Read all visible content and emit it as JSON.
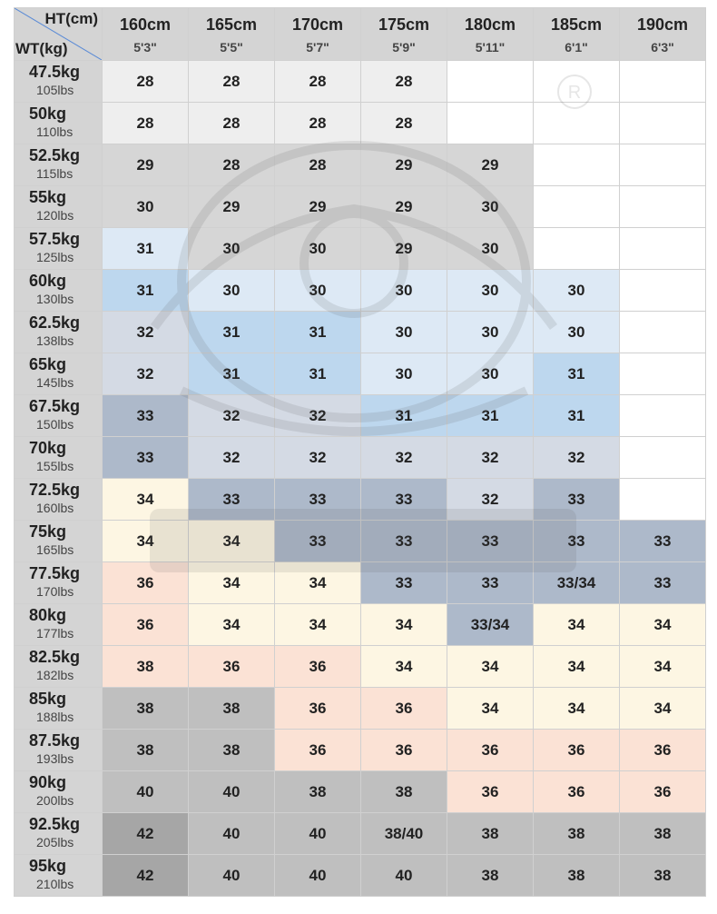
{
  "corner": {
    "ht_label": "HT(cm)",
    "wt_label": "WT(kg)"
  },
  "columns": [
    {
      "cm": "160cm",
      "inch": "5'3\""
    },
    {
      "cm": "165cm",
      "inch": "5'5\""
    },
    {
      "cm": "170cm",
      "inch": "5'7\""
    },
    {
      "cm": "175cm",
      "inch": "5'9\""
    },
    {
      "cm": "180cm",
      "inch": "5'11\""
    },
    {
      "cm": "185cm",
      "inch": "6'1\""
    },
    {
      "cm": "190cm",
      "inch": "6'3\""
    }
  ],
  "colors": {
    "white": "#ffffff",
    "light_gray": "#eeeeee",
    "mid_gray": "#d6d6d6",
    "pale_blue": "#dde9f5",
    "blue": "#bdd7ee",
    "slate_light": "#d4dae4",
    "slate": "#adb9ca",
    "cream": "#fdf6e3",
    "peach": "#fbe2d5",
    "gray": "#bfbfbf",
    "dark_gray": "#a6a6a6"
  },
  "rows": [
    {
      "kg": "47.5kg",
      "lbs": "105lbs",
      "cells": [
        {
          "v": "28",
          "c": "light_gray"
        },
        {
          "v": "28",
          "c": "light_gray"
        },
        {
          "v": "28",
          "c": "light_gray"
        },
        {
          "v": "28",
          "c": "light_gray"
        },
        {
          "v": "",
          "c": "white"
        },
        {
          "v": "",
          "c": "white"
        },
        {
          "v": "",
          "c": "white"
        }
      ]
    },
    {
      "kg": "50kg",
      "lbs": "110lbs",
      "cells": [
        {
          "v": "28",
          "c": "light_gray"
        },
        {
          "v": "28",
          "c": "light_gray"
        },
        {
          "v": "28",
          "c": "light_gray"
        },
        {
          "v": "28",
          "c": "light_gray"
        },
        {
          "v": "",
          "c": "white"
        },
        {
          "v": "",
          "c": "white"
        },
        {
          "v": "",
          "c": "white"
        }
      ]
    },
    {
      "kg": "52.5kg",
      "lbs": "115lbs",
      "cells": [
        {
          "v": "29",
          "c": "mid_gray"
        },
        {
          "v": "28",
          "c": "mid_gray"
        },
        {
          "v": "28",
          "c": "mid_gray"
        },
        {
          "v": "29",
          "c": "mid_gray"
        },
        {
          "v": "29",
          "c": "mid_gray"
        },
        {
          "v": "",
          "c": "white"
        },
        {
          "v": "",
          "c": "white"
        }
      ]
    },
    {
      "kg": "55kg",
      "lbs": "120lbs",
      "cells": [
        {
          "v": "30",
          "c": "mid_gray"
        },
        {
          "v": "29",
          "c": "mid_gray"
        },
        {
          "v": "29",
          "c": "mid_gray"
        },
        {
          "v": "29",
          "c": "mid_gray"
        },
        {
          "v": "30",
          "c": "mid_gray"
        },
        {
          "v": "",
          "c": "white"
        },
        {
          "v": "",
          "c": "white"
        }
      ]
    },
    {
      "kg": "57.5kg",
      "lbs": "125lbs",
      "cells": [
        {
          "v": "31",
          "c": "pale_blue"
        },
        {
          "v": "30",
          "c": "mid_gray"
        },
        {
          "v": "30",
          "c": "mid_gray"
        },
        {
          "v": "29",
          "c": "mid_gray"
        },
        {
          "v": "30",
          "c": "mid_gray"
        },
        {
          "v": "",
          "c": "white"
        },
        {
          "v": "",
          "c": "white"
        }
      ]
    },
    {
      "kg": "60kg",
      "lbs": "130lbs",
      "cells": [
        {
          "v": "31",
          "c": "blue"
        },
        {
          "v": "30",
          "c": "pale_blue"
        },
        {
          "v": "30",
          "c": "pale_blue"
        },
        {
          "v": "30",
          "c": "pale_blue"
        },
        {
          "v": "30",
          "c": "pale_blue"
        },
        {
          "v": "30",
          "c": "pale_blue"
        },
        {
          "v": "",
          "c": "white"
        }
      ]
    },
    {
      "kg": "62.5kg",
      "lbs": "138lbs",
      "cells": [
        {
          "v": "32",
          "c": "slate_light"
        },
        {
          "v": "31",
          "c": "blue"
        },
        {
          "v": "31",
          "c": "blue"
        },
        {
          "v": "30",
          "c": "pale_blue"
        },
        {
          "v": "30",
          "c": "pale_blue"
        },
        {
          "v": "30",
          "c": "pale_blue"
        },
        {
          "v": "",
          "c": "white"
        }
      ]
    },
    {
      "kg": "65kg",
      "lbs": "145lbs",
      "cells": [
        {
          "v": "32",
          "c": "slate_light"
        },
        {
          "v": "31",
          "c": "blue"
        },
        {
          "v": "31",
          "c": "blue"
        },
        {
          "v": "30",
          "c": "pale_blue"
        },
        {
          "v": "30",
          "c": "pale_blue"
        },
        {
          "v": "31",
          "c": "blue"
        },
        {
          "v": "",
          "c": "white"
        }
      ]
    },
    {
      "kg": "67.5kg",
      "lbs": "150lbs",
      "cells": [
        {
          "v": "33",
          "c": "slate"
        },
        {
          "v": "32",
          "c": "slate_light"
        },
        {
          "v": "32",
          "c": "slate_light"
        },
        {
          "v": "31",
          "c": "blue"
        },
        {
          "v": "31",
          "c": "blue"
        },
        {
          "v": "31",
          "c": "blue"
        },
        {
          "v": "",
          "c": "white"
        }
      ]
    },
    {
      "kg": "70kg",
      "lbs": "155lbs",
      "cells": [
        {
          "v": "33",
          "c": "slate"
        },
        {
          "v": "32",
          "c": "slate_light"
        },
        {
          "v": "32",
          "c": "slate_light"
        },
        {
          "v": "32",
          "c": "slate_light"
        },
        {
          "v": "32",
          "c": "slate_light"
        },
        {
          "v": "32",
          "c": "slate_light"
        },
        {
          "v": "",
          "c": "white"
        }
      ]
    },
    {
      "kg": "72.5kg",
      "lbs": "160lbs",
      "cells": [
        {
          "v": "34",
          "c": "cream"
        },
        {
          "v": "33",
          "c": "slate"
        },
        {
          "v": "33",
          "c": "slate"
        },
        {
          "v": "33",
          "c": "slate"
        },
        {
          "v": "32",
          "c": "slate_light"
        },
        {
          "v": "33",
          "c": "slate"
        },
        {
          "v": "",
          "c": "white"
        }
      ]
    },
    {
      "kg": "75kg",
      "lbs": "165lbs",
      "cells": [
        {
          "v": "34",
          "c": "cream"
        },
        {
          "v": "34",
          "c": "cream"
        },
        {
          "v": "33",
          "c": "slate"
        },
        {
          "v": "33",
          "c": "slate"
        },
        {
          "v": "33",
          "c": "slate"
        },
        {
          "v": "33",
          "c": "slate"
        },
        {
          "v": "33",
          "c": "slate"
        }
      ]
    },
    {
      "kg": "77.5kg",
      "lbs": "170lbs",
      "cells": [
        {
          "v": "36",
          "c": "peach"
        },
        {
          "v": "34",
          "c": "cream"
        },
        {
          "v": "34",
          "c": "cream"
        },
        {
          "v": "33",
          "c": "slate"
        },
        {
          "v": "33",
          "c": "slate"
        },
        {
          "v": "33/34",
          "c": "slate"
        },
        {
          "v": "33",
          "c": "slate"
        }
      ]
    },
    {
      "kg": "80kg",
      "lbs": "177lbs",
      "cells": [
        {
          "v": "36",
          "c": "peach"
        },
        {
          "v": "34",
          "c": "cream"
        },
        {
          "v": "34",
          "c": "cream"
        },
        {
          "v": "34",
          "c": "cream"
        },
        {
          "v": "33/34",
          "c": "slate"
        },
        {
          "v": "34",
          "c": "cream"
        },
        {
          "v": "34",
          "c": "cream"
        }
      ]
    },
    {
      "kg": "82.5kg",
      "lbs": "182lbs",
      "cells": [
        {
          "v": "38",
          "c": "peach"
        },
        {
          "v": "36",
          "c": "peach"
        },
        {
          "v": "36",
          "c": "peach"
        },
        {
          "v": "34",
          "c": "cream"
        },
        {
          "v": "34",
          "c": "cream"
        },
        {
          "v": "34",
          "c": "cream"
        },
        {
          "v": "34",
          "c": "cream"
        }
      ]
    },
    {
      "kg": "85kg",
      "lbs": "188lbs",
      "cells": [
        {
          "v": "38",
          "c": "gray"
        },
        {
          "v": "38",
          "c": "gray"
        },
        {
          "v": "36",
          "c": "peach"
        },
        {
          "v": "36",
          "c": "peach"
        },
        {
          "v": "34",
          "c": "cream"
        },
        {
          "v": "34",
          "c": "cream"
        },
        {
          "v": "34",
          "c": "cream"
        }
      ]
    },
    {
      "kg": "87.5kg",
      "lbs": "193lbs",
      "cells": [
        {
          "v": "38",
          "c": "gray"
        },
        {
          "v": "38",
          "c": "gray"
        },
        {
          "v": "36",
          "c": "peach"
        },
        {
          "v": "36",
          "c": "peach"
        },
        {
          "v": "36",
          "c": "peach"
        },
        {
          "v": "36",
          "c": "peach"
        },
        {
          "v": "36",
          "c": "peach"
        }
      ]
    },
    {
      "kg": "90kg",
      "lbs": "200lbs",
      "cells": [
        {
          "v": "40",
          "c": "gray"
        },
        {
          "v": "40",
          "c": "gray"
        },
        {
          "v": "38",
          "c": "gray"
        },
        {
          "v": "38",
          "c": "gray"
        },
        {
          "v": "36",
          "c": "peach"
        },
        {
          "v": "36",
          "c": "peach"
        },
        {
          "v": "36",
          "c": "peach"
        }
      ]
    },
    {
      "kg": "92.5kg",
      "lbs": "205lbs",
      "cells": [
        {
          "v": "42",
          "c": "dark_gray"
        },
        {
          "v": "40",
          "c": "gray"
        },
        {
          "v": "40",
          "c": "gray"
        },
        {
          "v": "38/40",
          "c": "gray"
        },
        {
          "v": "38",
          "c": "gray"
        },
        {
          "v": "38",
          "c": "gray"
        },
        {
          "v": "38",
          "c": "gray"
        }
      ]
    },
    {
      "kg": "95kg",
      "lbs": "210lbs",
      "cells": [
        {
          "v": "42",
          "c": "dark_gray"
        },
        {
          "v": "40",
          "c": "gray"
        },
        {
          "v": "40",
          "c": "gray"
        },
        {
          "v": "40",
          "c": "gray"
        },
        {
          "v": "38",
          "c": "gray"
        },
        {
          "v": "38",
          "c": "gray"
        },
        {
          "v": "38",
          "c": "gray"
        }
      ]
    }
  ]
}
